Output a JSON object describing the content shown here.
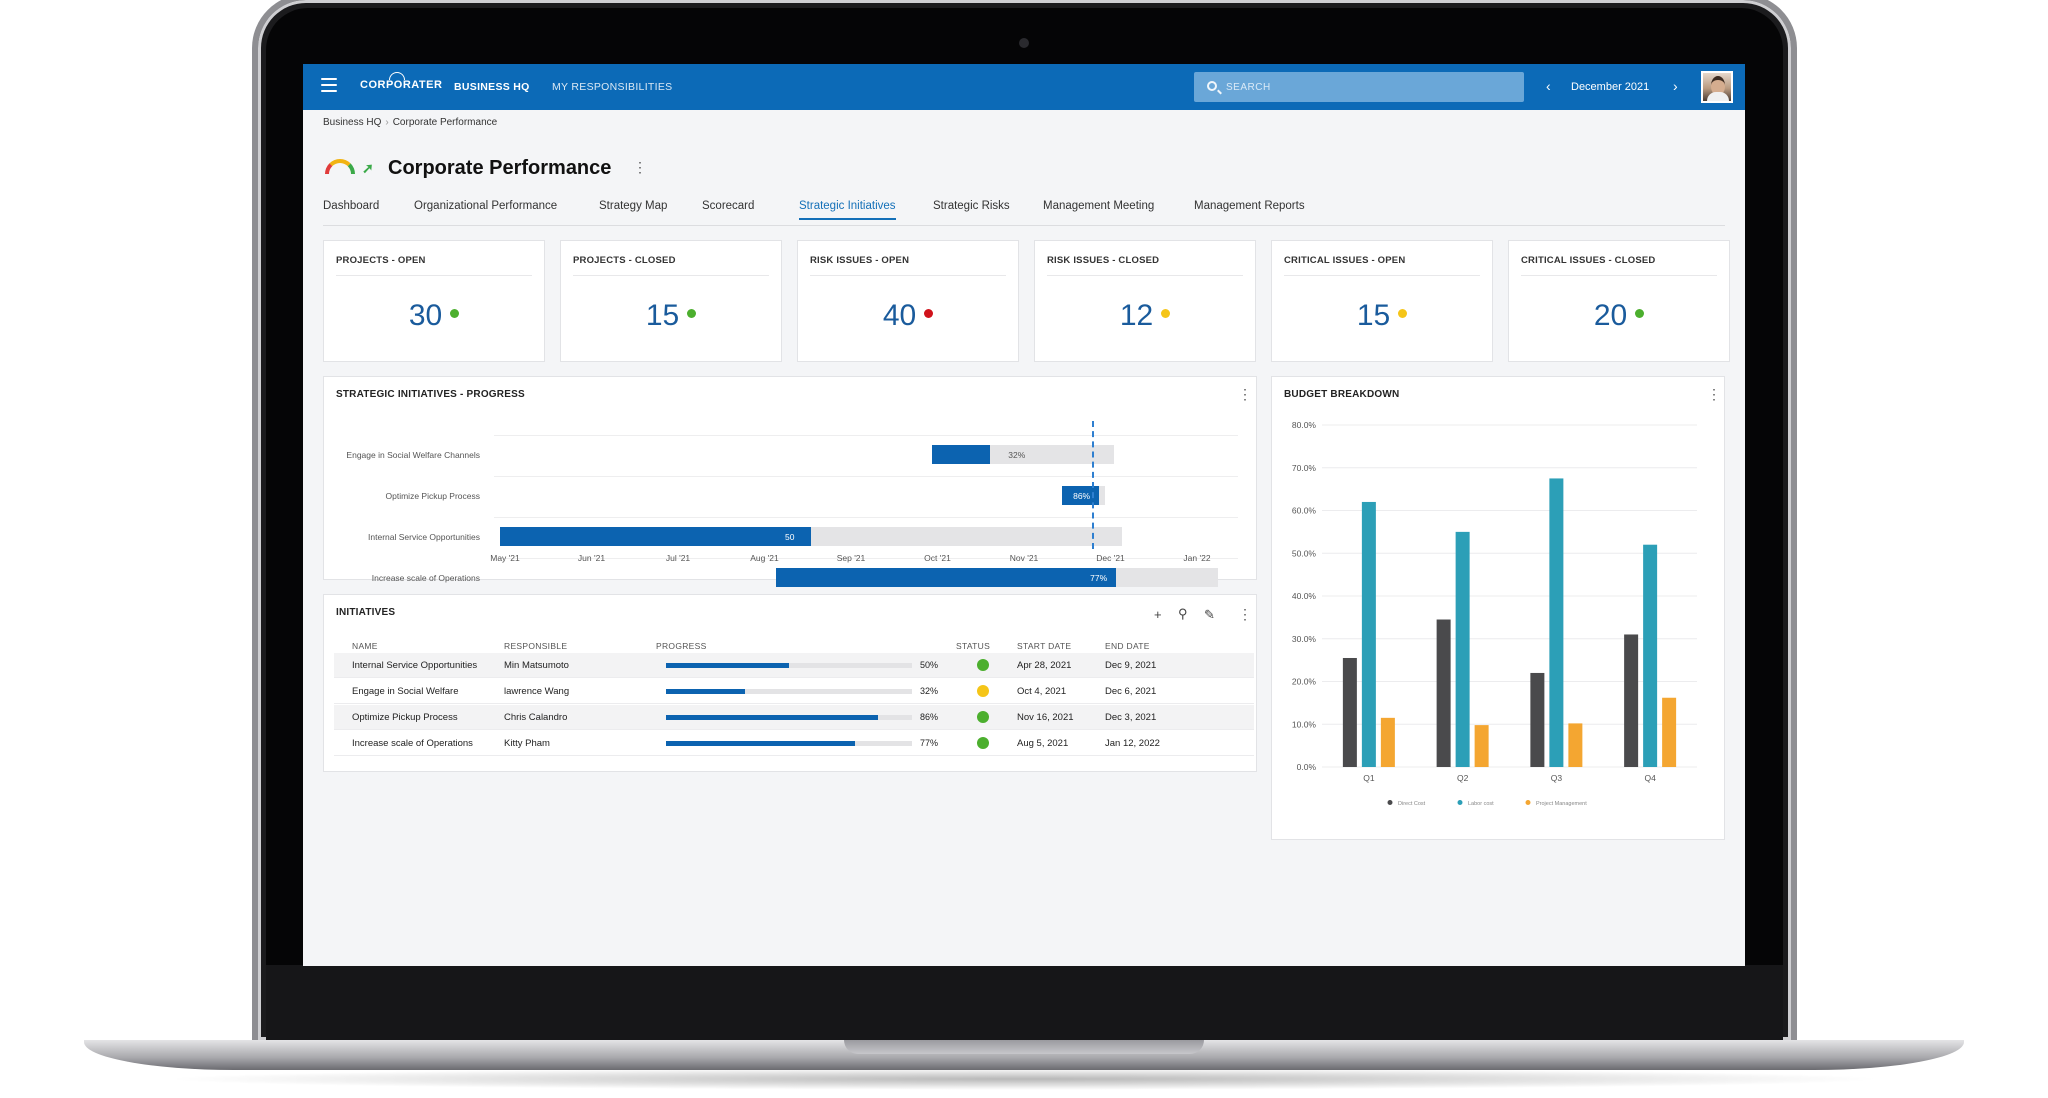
{
  "app": {
    "logo": "CORPORATER",
    "nav": [
      "BUSINESS HQ",
      "MY RESPONSIBILITIES"
    ],
    "search_placeholder": "SEARCH",
    "period": "December 2021"
  },
  "breadcrumb": [
    "Business HQ",
    "Corporate Performance"
  ],
  "page_title": "Corporate Performance",
  "tabs": [
    "Dashboard",
    "Organizational Performance",
    "Strategy Map",
    "Scorecard",
    "Strategic Initiatives",
    "Strategic Risks",
    "Management Meeting",
    "Management Reports"
  ],
  "active_tab": "Strategic Initiatives",
  "kpis": [
    {
      "title": "PROJECTS - OPEN",
      "value": "30",
      "status_color": "#4caf2e"
    },
    {
      "title": "PROJECTS - CLOSED",
      "value": "15",
      "status_color": "#4caf2e"
    },
    {
      "title": "RISK ISSUES - OPEN",
      "value": "40",
      "status_color": "#d0121b"
    },
    {
      "title": "RISK ISSUES - CLOSED",
      "value": "12",
      "status_color": "#f5c518"
    },
    {
      "title": "CRITICAL ISSUES - OPEN",
      "value": "15",
      "status_color": "#f5c518"
    },
    {
      "title": "CRITICAL ISSUES - CLOSED",
      "value": "20",
      "status_color": "#4caf2e"
    }
  ],
  "progress_panel": {
    "title": "STRATEGIC INITIATIVES - PROGRESS",
    "months": [
      "May '21",
      "Jun '21",
      "Jul '21",
      "Aug '21",
      "Sep '21",
      "Oct '21",
      "Nov '21",
      "Dec '21",
      "Jan '22"
    ],
    "today_month_index": 6.95,
    "tasks": [
      {
        "name": "Engage in Social Welfare Channels",
        "start": 5.1,
        "end": 7.2,
        "progress": 32,
        "label": "32%"
      },
      {
        "name": "Optimize Pickup Process",
        "start": 6.6,
        "end": 7.1,
        "progress": 86,
        "label": "86%"
      },
      {
        "name": "Internal Service Opportunities",
        "start": 0.1,
        "end": 7.3,
        "progress": 50,
        "label": "50"
      },
      {
        "name": "Increase scale of Operations",
        "start": 3.3,
        "end": 8.4,
        "progress": 77,
        "label": "77%"
      }
    ]
  },
  "initiatives": {
    "title": "INITIATIVES",
    "columns": [
      "NAME",
      "RESPONSIBLE",
      "PROGRESS",
      "STATUS",
      "START DATE",
      "END DATE"
    ],
    "rows": [
      {
        "name": "Internal Service Opportunities",
        "responsible": "Min Matsumoto",
        "progress": 50,
        "progress_label": "50%",
        "status_color": "#4caf2e",
        "start": "Apr 28, 2021",
        "end": "Dec 9, 2021"
      },
      {
        "name": "Engage in Social Welfare",
        "responsible": "lawrence Wang",
        "progress": 32,
        "progress_label": "32%",
        "status_color": "#f5c518",
        "start": "Oct 4, 2021",
        "end": "Dec 6, 2021"
      },
      {
        "name": "Optimize Pickup Process",
        "responsible": "Chris Calandro",
        "progress": 86,
        "progress_label": "86%",
        "status_color": "#4caf2e",
        "start": "Nov 16, 2021",
        "end": "Dec 3, 2021"
      },
      {
        "name": "Increase scale of Operations",
        "responsible": "Kitty Pham",
        "progress": 77,
        "progress_label": "77%",
        "status_color": "#4caf2e",
        "start": "Aug 5, 2021",
        "end": "Jan 12, 2022"
      }
    ]
  },
  "chart_data": {
    "type": "bar",
    "title": "BUDGET BREAKDOWN",
    "categories": [
      "Q1",
      "Q2",
      "Q3",
      "Q4"
    ],
    "ylim": [
      0,
      80
    ],
    "y_ticks": [
      "0.0%",
      "10.0%",
      "20.0%",
      "30.0%",
      "40.0%",
      "50.0%",
      "60.0%",
      "70.0%",
      "80.0%"
    ],
    "grid": true,
    "legend_position": "bottom",
    "series": [
      {
        "name": "Direct Cost",
        "color": "#4a4a4c",
        "values": [
          25.5,
          34.5,
          22,
          31
        ]
      },
      {
        "name": "Labor cost",
        "color": "#2c9fb7",
        "values": [
          62,
          55,
          67.5,
          52
        ]
      },
      {
        "name": "Project Management",
        "color": "#f4a631",
        "values": [
          11.5,
          9.8,
          10.2,
          16.2
        ]
      }
    ]
  }
}
